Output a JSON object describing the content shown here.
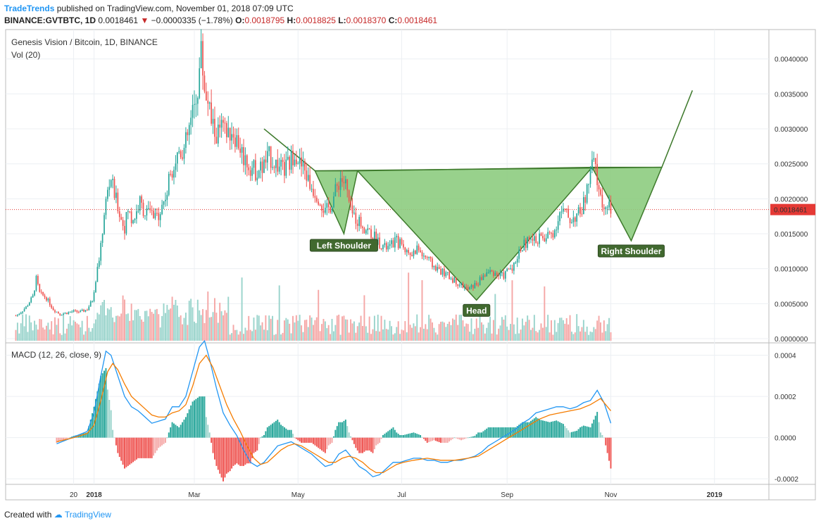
{
  "header": {
    "brand": "TradeTrends",
    "published": "published on TradingView.com, November 01, 2018 07:09 UTC",
    "symbol": "BINANCE:GVTBTC, 1D",
    "last": "0.0018461",
    "change": "−0.0000335 (−1.78%)",
    "open_label": "O:",
    "open": "0.0018795",
    "high_label": "H:",
    "high": "0.0018825",
    "low_label": "L:",
    "low": "0.0018370",
    "close_label": "C:",
    "close": "0.0018461"
  },
  "footer": {
    "created_with": "Created with",
    "brand": "TradingView"
  },
  "colors": {
    "up": "#26a69a",
    "down": "#ef5350",
    "vol_up": "#9ad4cc",
    "vol_down": "#f5a7a6",
    "pattern_fill": "#8dcc7f",
    "pattern_stroke": "#3e7a2c",
    "label_bg": "#41692f",
    "macd": "#2196f3",
    "signal": "#f57c00",
    "price_line": "#e53935"
  },
  "chart_data": [
    {
      "type": "candlestick",
      "title": "Genesis Vision / Bitcoin, 1D, BINANCE",
      "volume_label": "Vol (20)",
      "ylim": [
        0,
        0.0044
      ],
      "y_ticks": [
        "0.0000000",
        "0.0005000",
        "0.0010000",
        "0.0015000",
        "0.0020000",
        "0.0025000",
        "0.0030000",
        "0.0035000",
        "0.0040000"
      ],
      "y_tick_values": [
        0,
        0.0005,
        0.001,
        0.0015,
        0.002,
        0.0025,
        0.003,
        0.0035,
        0.004
      ],
      "last_price_label": "0.0018461",
      "last_price": 0.0018461,
      "x_ticks": [
        "20",
        "2018",
        "Mar",
        "May",
        "Jul",
        "Sep",
        "Nov",
        "2019"
      ],
      "x_tick_days": [
        -12,
        0,
        59,
        120,
        181,
        243,
        304,
        365
      ],
      "x_range_days": [
        -52,
        397
      ],
      "price_path": [
        [
          -46,
          0.00033
        ],
        [
          -44,
          0.00036
        ],
        [
          -40,
          0.00045
        ],
        [
          -36,
          0.0006
        ],
        [
          -34,
          0.00085
        ],
        [
          -32,
          0.00065
        ],
        [
          -28,
          0.00058
        ],
        [
          -24,
          0.00042
        ],
        [
          -20,
          0.00035
        ],
        [
          -16,
          0.00037
        ],
        [
          -12,
          0.00039
        ],
        [
          -8,
          0.00038
        ],
        [
          -4,
          0.00042
        ],
        [
          -1,
          0.00055
        ],
        [
          2,
          0.001
        ],
        [
          4,
          0.0013
        ],
        [
          6,
          0.0018
        ],
        [
          8,
          0.0021
        ],
        [
          10,
          0.0023
        ],
        [
          12,
          0.00205
        ],
        [
          14,
          0.0019
        ],
        [
          16,
          0.0017
        ],
        [
          18,
          0.0016
        ],
        [
          20,
          0.00185
        ],
        [
          22,
          0.0017
        ],
        [
          24,
          0.00175
        ],
        [
          27,
          0.00195
        ],
        [
          30,
          0.0018
        ],
        [
          33,
          0.0018
        ],
        [
          36,
          0.0017
        ],
        [
          38,
          0.0018
        ],
        [
          40,
          0.0019
        ],
        [
          43,
          0.0021
        ],
        [
          45,
          0.0024
        ],
        [
          47,
          0.0025
        ],
        [
          50,
          0.0027
        ],
        [
          53,
          0.0027
        ],
        [
          56,
          0.003
        ],
        [
          59,
          0.0033
        ],
        [
          61,
          0.0036
        ],
        [
          63,
          0.0041
        ],
        [
          65,
          0.0036
        ],
        [
          67,
          0.0034
        ],
        [
          69,
          0.0031
        ],
        [
          72,
          0.0029
        ],
        [
          75,
          0.003
        ],
        [
          78,
          0.0029
        ],
        [
          81,
          0.003
        ],
        [
          85,
          0.0028
        ],
        [
          88,
          0.0026
        ],
        [
          91,
          0.0025
        ],
        [
          95,
          0.0024
        ],
        [
          99,
          0.00245
        ],
        [
          103,
          0.0026
        ],
        [
          107,
          0.0025
        ],
        [
          111,
          0.0024
        ],
        [
          115,
          0.0025
        ],
        [
          118,
          0.0027
        ],
        [
          121,
          0.0025
        ],
        [
          124,
          0.0024
        ],
        [
          127,
          0.0022
        ],
        [
          130,
          0.0021
        ],
        [
          133,
          0.002
        ],
        [
          136,
          0.0018
        ],
        [
          139,
          0.0019
        ],
        [
          142,
          0.0021
        ],
        [
          145,
          0.0023
        ],
        [
          148,
          0.0022
        ],
        [
          151,
          0.0018
        ],
        [
          155,
          0.0017
        ],
        [
          159,
          0.0016
        ],
        [
          163,
          0.0015
        ],
        [
          167,
          0.0014
        ],
        [
          171,
          0.0013
        ],
        [
          174,
          0.0013
        ],
        [
          177,
          0.0014
        ],
        [
          181,
          0.00135
        ],
        [
          184,
          0.00125
        ],
        [
          187,
          0.0012
        ],
        [
          190,
          0.0013
        ],
        [
          193,
          0.0012
        ],
        [
          196,
          0.00115
        ],
        [
          199,
          0.00105
        ],
        [
          202,
          0.001
        ],
        [
          205,
          0.00095
        ],
        [
          208,
          0.0009
        ],
        [
          211,
          0.00085
        ],
        [
          214,
          0.0008
        ],
        [
          217,
          0.00075
        ],
        [
          220,
          0.0007
        ],
        [
          223,
          0.00075
        ],
        [
          226,
          0.0008
        ],
        [
          229,
          0.0009
        ],
        [
          232,
          0.00095
        ],
        [
          235,
          0.00095
        ],
        [
          238,
          0.0009
        ],
        [
          241,
          0.0009
        ],
        [
          244,
          0.001
        ],
        [
          247,
          0.00105
        ],
        [
          250,
          0.00125
        ],
        [
          253,
          0.00135
        ],
        [
          256,
          0.0014
        ],
        [
          259,
          0.0014
        ],
        [
          262,
          0.00145
        ],
        [
          265,
          0.0014
        ],
        [
          268,
          0.0015
        ],
        [
          271,
          0.00155
        ],
        [
          274,
          0.0018
        ],
        [
          277,
          0.0018
        ],
        [
          280,
          0.0017
        ],
        [
          283,
          0.00175
        ],
        [
          286,
          0.0018
        ],
        [
          289,
          0.002
        ],
        [
          292,
          0.00235
        ],
        [
          294,
          0.00255
        ],
        [
          296,
          0.00225
        ],
        [
          298,
          0.002
        ],
        [
          300,
          0.0019
        ],
        [
          302,
          0.00185
        ],
        [
          304,
          0.00185
        ]
      ],
      "volume_scale": 0.0016,
      "pattern": {
        "left_shoulder_label": "Left Shoulder",
        "head_label": "Head",
        "right_shoulder_label": "Right Shoulder",
        "neckline_start": [
          130,
          0.0024
        ],
        "neckline_end": [
          334,
          0.00245
        ],
        "entry_start": [
          100,
          0.003
        ],
        "left_shoulder": [
          147,
          0.0015
        ],
        "neck_left": [
          155,
          0.0024
        ],
        "head": [
          225,
          0.00055
        ],
        "neck_right": [
          293,
          0.00245
        ],
        "right_shoulder": [
          316,
          0.0014
        ],
        "right_neck": [
          334,
          0.00245
        ],
        "target": [
          352,
          0.00355
        ]
      }
    },
    {
      "type": "line",
      "title": "MACD (12, 26, close, 9)",
      "ylim": [
        -0.00022,
        0.00045
      ],
      "y_ticks": [
        "-0.0002",
        "0.0000",
        "0.0002",
        "0.0004"
      ],
      "y_tick_values": [
        -0.0002,
        0,
        0.0002,
        0.0004
      ],
      "series": [
        {
          "name": "MACD",
          "points": [
            [
              -22,
              -3e-05
            ],
            [
              -16,
              -1e-05
            ],
            [
              -10,
              1e-05
            ],
            [
              -4,
              3e-05
            ],
            [
              0,
              0.00012
            ],
            [
              4,
              0.0003
            ],
            [
              7,
              0.00042
            ],
            [
              10,
              0.0004
            ],
            [
              14,
              0.0003
            ],
            [
              18,
              0.0002
            ],
            [
              22,
              0.00015
            ],
            [
              26,
              0.00013
            ],
            [
              30,
              0.0001
            ],
            [
              34,
              7e-05
            ],
            [
              38,
              8e-05
            ],
            [
              42,
              9e-05
            ],
            [
              46,
              0.00015
            ],
            [
              50,
              0.00015
            ],
            [
              54,
              0.0002
            ],
            [
              58,
              0.00032
            ],
            [
              62,
              0.00044
            ],
            [
              65,
              0.00047
            ],
            [
              68,
              0.00038
            ],
            [
              72,
              0.00024
            ],
            [
              76,
              0.00012
            ],
            [
              80,
              6e-05
            ],
            [
              84,
              1e-05
            ],
            [
              88,
              -6e-05
            ],
            [
              92,
              -0.00012
            ],
            [
              96,
              -0.00014
            ],
            [
              100,
              -0.00012
            ],
            [
              104,
              -8e-05
            ],
            [
              108,
              -4e-05
            ],
            [
              112,
              -3e-05
            ],
            [
              116,
              -2e-05
            ],
            [
              120,
              -4e-05
            ],
            [
              124,
              -6e-05
            ],
            [
              128,
              -8e-05
            ],
            [
              132,
              -0.00011
            ],
            [
              136,
              -0.00014
            ],
            [
              140,
              -0.00013
            ],
            [
              144,
              -8e-05
            ],
            [
              148,
              -6e-05
            ],
            [
              152,
              -0.0001
            ],
            [
              156,
              -0.00014
            ],
            [
              160,
              -0.00016
            ],
            [
              164,
              -0.00019
            ],
            [
              168,
              -0.00018
            ],
            [
              172,
              -0.00015
            ],
            [
              176,
              -0.00012
            ],
            [
              180,
              -0.00012
            ],
            [
              184,
              -0.00011
            ],
            [
              188,
              -0.0001
            ],
            [
              192,
              -0.0001
            ],
            [
              196,
              -0.00011
            ],
            [
              200,
              -0.00011
            ],
            [
              204,
              -0.00012
            ],
            [
              208,
              -0.00012
            ],
            [
              212,
              -0.00011
            ],
            [
              216,
              -0.00011
            ],
            [
              220,
              -0.0001
            ],
            [
              224,
              -9e-05
            ],
            [
              228,
              -7e-05
            ],
            [
              232,
              -4e-05
            ],
            [
              236,
              -2e-05
            ],
            [
              240,
              0.0
            ],
            [
              244,
              2e-05
            ],
            [
              248,
              4e-05
            ],
            [
              252,
              7e-05
            ],
            [
              256,
              9e-05
            ],
            [
              260,
              0.00012
            ],
            [
              264,
              0.00013
            ],
            [
              268,
              0.00014
            ],
            [
              272,
              0.00015
            ],
            [
              276,
              0.00015
            ],
            [
              280,
              0.00014
            ],
            [
              284,
              0.00015
            ],
            [
              288,
              0.00017
            ],
            [
              292,
              0.00018
            ],
            [
              296,
              0.00023
            ],
            [
              300,
              0.00017
            ],
            [
              304,
              7e-05
            ]
          ]
        },
        {
          "name": "Signal",
          "points": [
            [
              -22,
              -2e-05
            ],
            [
              -12,
              0.0
            ],
            [
              -4,
              2e-05
            ],
            [
              0,
              6e-05
            ],
            [
              4,
              0.00018
            ],
            [
              8,
              0.00032
            ],
            [
              11,
              0.00036
            ],
            [
              14,
              0.00033
            ],
            [
              18,
              0.00026
            ],
            [
              22,
              0.0002
            ],
            [
              26,
              0.00017
            ],
            [
              30,
              0.00014
            ],
            [
              34,
              0.00011
            ],
            [
              38,
              0.0001
            ],
            [
              42,
              0.0001
            ],
            [
              46,
              0.00012
            ],
            [
              50,
              0.00013
            ],
            [
              54,
              0.00016
            ],
            [
              58,
              0.00025
            ],
            [
              62,
              0.00036
            ],
            [
              66,
              0.0004
            ],
            [
              70,
              0.00034
            ],
            [
              74,
              0.00025
            ],
            [
              78,
              0.00016
            ],
            [
              82,
              9e-05
            ],
            [
              86,
              3e-05
            ],
            [
              90,
              -4e-05
            ],
            [
              94,
              -0.0001
            ],
            [
              98,
              -0.00013
            ],
            [
              102,
              -0.00012
            ],
            [
              106,
              -9e-05
            ],
            [
              110,
              -6e-05
            ],
            [
              114,
              -4e-05
            ],
            [
              118,
              -3e-05
            ],
            [
              122,
              -4e-05
            ],
            [
              126,
              -6e-05
            ],
            [
              130,
              -8e-05
            ],
            [
              134,
              -0.0001
            ],
            [
              138,
              -0.00012
            ],
            [
              142,
              -0.00012
            ],
            [
              146,
              -0.0001
            ],
            [
              150,
              -9e-05
            ],
            [
              154,
              -0.0001
            ],
            [
              158,
              -0.00012
            ],
            [
              162,
              -0.00015
            ],
            [
              166,
              -0.00017
            ],
            [
              170,
              -0.00017
            ],
            [
              174,
              -0.00015
            ],
            [
              178,
              -0.00013
            ],
            [
              182,
              -0.00012
            ],
            [
              188,
              -0.00011
            ],
            [
              196,
              -0.0001
            ],
            [
              204,
              -0.00011
            ],
            [
              212,
              -0.00011
            ],
            [
              220,
              -0.0001
            ],
            [
              226,
              -9e-05
            ],
            [
              232,
              -6e-05
            ],
            [
              238,
              -3e-05
            ],
            [
              244,
              0.0
            ],
            [
              250,
              3e-05
            ],
            [
              256,
              6e-05
            ],
            [
              262,
              9e-05
            ],
            [
              268,
              0.00011
            ],
            [
              274,
              0.00012
            ],
            [
              280,
              0.00013
            ],
            [
              286,
              0.00014
            ],
            [
              292,
              0.00016
            ],
            [
              298,
              0.00019
            ],
            [
              304,
              0.00013
            ]
          ]
        }
      ]
    }
  ]
}
